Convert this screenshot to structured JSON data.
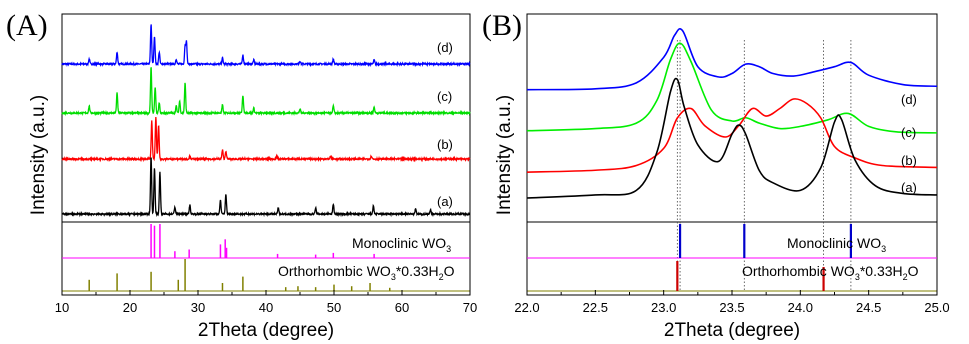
{
  "chart_data": [
    {
      "type": "line",
      "panel_label": "(A)",
      "xlabel": "2Theta (degree)",
      "ylabel": "Intensity (a.u.)",
      "xlim": [
        10,
        70
      ],
      "xticks": [
        "10",
        "20",
        "30",
        "40",
        "50",
        "60",
        "70"
      ],
      "series": [
        {
          "name": "(d)",
          "color": "#0000ff",
          "peaks": [
            [
              14.0,
              5
            ],
            [
              18.1,
              12
            ],
            [
              23.1,
              40
            ],
            [
              23.6,
              28
            ],
            [
              24.3,
              12
            ],
            [
              26.8,
              5
            ],
            [
              28.1,
              18
            ],
            [
              28.3,
              22
            ],
            [
              33.6,
              6
            ],
            [
              36.6,
              9
            ],
            [
              38.2,
              4
            ],
            [
              45.0,
              3
            ],
            [
              49.9,
              5
            ],
            [
              55.9,
              4
            ]
          ]
        },
        {
          "name": "(c)",
          "color": "#00dd00",
          "peaks": [
            [
              14.0,
              7
            ],
            [
              18.1,
              20
            ],
            [
              23.1,
              46
            ],
            [
              23.7,
              26
            ],
            [
              24.3,
              10
            ],
            [
              26.8,
              7
            ],
            [
              27.3,
              12
            ],
            [
              28.1,
              30
            ],
            [
              33.6,
              8
            ],
            [
              36.6,
              18
            ],
            [
              38.2,
              5
            ],
            [
              45.0,
              4
            ],
            [
              49.9,
              7
            ],
            [
              55.9,
              6
            ]
          ]
        },
        {
          "name": "(b)",
          "color": "#ff0000",
          "peaks": [
            [
              23.2,
              38
            ],
            [
              23.8,
              42
            ],
            [
              24.2,
              34
            ],
            [
              28.8,
              3
            ],
            [
              33.6,
              9
            ],
            [
              34.1,
              8
            ],
            [
              41.6,
              3
            ],
            [
              49.5,
              3
            ],
            [
              55.5,
              3
            ]
          ]
        },
        {
          "name": "(a)",
          "color": "#000000",
          "peaks": [
            [
              23.1,
              58
            ],
            [
              23.6,
              46
            ],
            [
              24.4,
              42
            ],
            [
              26.6,
              7
            ],
            [
              28.8,
              9
            ],
            [
              33.3,
              14
            ],
            [
              34.1,
              20
            ],
            [
              41.8,
              6
            ],
            [
              47.3,
              6
            ],
            [
              49.9,
              10
            ],
            [
              55.8,
              8
            ],
            [
              62.0,
              5
            ],
            [
              64.2,
              4
            ]
          ]
        }
      ],
      "references": [
        {
          "label": "Monoclinic  WO",
          "subscript": "3",
          "color": "#ff00ff",
          "sticks": [
            [
              23.1,
              1.0
            ],
            [
              23.6,
              0.95
            ],
            [
              24.4,
              1.0
            ],
            [
              26.6,
              0.2
            ],
            [
              28.7,
              0.25
            ],
            [
              33.3,
              0.4
            ],
            [
              34.0,
              0.55
            ],
            [
              34.2,
              0.3
            ],
            [
              41.7,
              0.12
            ],
            [
              47.3,
              0.1
            ],
            [
              49.9,
              0.15
            ],
            [
              55.9,
              0.12
            ]
          ]
        },
        {
          "label": "Orthorhombic WO",
          "subscript": "3",
          "suffix": "*0.33H",
          "subscript2": "2",
          "suffix2": "O",
          "color": "#808000",
          "sticks": [
            [
              14.0,
              0.35
            ],
            [
              18.1,
              0.55
            ],
            [
              23.1,
              0.6
            ],
            [
              27.1,
              0.35
            ],
            [
              28.1,
              1.0
            ],
            [
              33.6,
              0.25
            ],
            [
              36.6,
              0.45
            ],
            [
              42.9,
              0.12
            ],
            [
              44.7,
              0.15
            ],
            [
              47.3,
              0.12
            ],
            [
              50.0,
              0.2
            ],
            [
              52.6,
              0.15
            ],
            [
              55.3,
              0.25
            ],
            [
              58.2,
              0.1
            ]
          ]
        }
      ]
    },
    {
      "type": "line",
      "panel_label": "(B)",
      "xlabel": "2Theta (degree)",
      "ylabel": "Intensity (a.u.)",
      "xlim": [
        22.0,
        25.0
      ],
      "xticks": [
        "22.0",
        "22.5",
        "23.0",
        "23.5",
        "24.0",
        "24.5",
        "25.0"
      ],
      "vlines": [
        23.1,
        23.12,
        23.59,
        24.17,
        24.37
      ],
      "series": [
        {
          "name": "(d)",
          "color": "#0000ff",
          "x": [
            22.0,
            22.5,
            22.8,
            23.0,
            23.08,
            23.14,
            23.25,
            23.4,
            23.5,
            23.6,
            23.7,
            23.8,
            23.95,
            24.1,
            24.25,
            24.37,
            24.5,
            24.75,
            25.0
          ],
          "y": [
            0.31,
            0.32,
            0.39,
            0.69,
            0.95,
            1.0,
            0.58,
            0.46,
            0.5,
            0.61,
            0.58,
            0.5,
            0.47,
            0.52,
            0.58,
            0.63,
            0.48,
            0.37,
            0.35
          ]
        },
        {
          "name": "(c)",
          "color": "#00ee00",
          "x": [
            22.0,
            22.5,
            22.8,
            22.95,
            23.05,
            23.12,
            23.2,
            23.35,
            23.5,
            23.6,
            23.7,
            23.85,
            24.0,
            24.2,
            24.35,
            24.5,
            24.7,
            25.0
          ],
          "y": [
            0.16,
            0.18,
            0.23,
            0.44,
            0.82,
            0.97,
            0.8,
            0.35,
            0.25,
            0.28,
            0.23,
            0.18,
            0.2,
            0.26,
            0.32,
            0.2,
            0.15,
            0.14
          ]
        },
        {
          "name": "(b)",
          "color": "#ff0000",
          "x": [
            22.0,
            22.5,
            22.8,
            23.0,
            23.1,
            23.2,
            23.3,
            23.45,
            23.55,
            23.65,
            23.75,
            23.85,
            23.95,
            24.05,
            24.15,
            24.25,
            24.4,
            24.6,
            25.0
          ],
          "y": [
            0.03,
            0.05,
            0.1,
            0.28,
            0.6,
            0.7,
            0.52,
            0.4,
            0.52,
            0.7,
            0.62,
            0.7,
            0.8,
            0.75,
            0.6,
            0.3,
            0.18,
            0.1,
            0.08
          ]
        },
        {
          "name": "(a)",
          "color": "#000000",
          "x": [
            22.0,
            22.5,
            22.8,
            22.95,
            23.05,
            23.1,
            23.15,
            23.25,
            23.4,
            23.5,
            23.55,
            23.6,
            23.7,
            23.8,
            24.0,
            24.15,
            24.25,
            24.3,
            24.4,
            24.55,
            24.75,
            25.0
          ],
          "y": [
            0.0,
            0.02,
            0.05,
            0.3,
            0.7,
            0.78,
            0.6,
            0.35,
            0.24,
            0.42,
            0.48,
            0.42,
            0.18,
            0.1,
            0.05,
            0.2,
            0.5,
            0.52,
            0.25,
            0.08,
            0.03,
            0.02
          ]
        }
      ],
      "references": [
        {
          "label": "Monoclinic  WO",
          "subscript": "3",
          "color": "#ff00ff",
          "stick_color": "#0000cc",
          "sticks": [
            [
              23.12,
              1.0
            ],
            [
              23.59,
              1.0
            ],
            [
              24.37,
              1.0
            ]
          ]
        },
        {
          "label": "Orthorhombic WO",
          "subscript": "3",
          "suffix": "*0.33H",
          "subscript2": "2",
          "suffix2": "O",
          "color": "#808000",
          "stick_color": "#cc0000",
          "sticks": [
            [
              23.1,
              1.0
            ],
            [
              24.17,
              0.8
            ]
          ]
        }
      ]
    }
  ]
}
